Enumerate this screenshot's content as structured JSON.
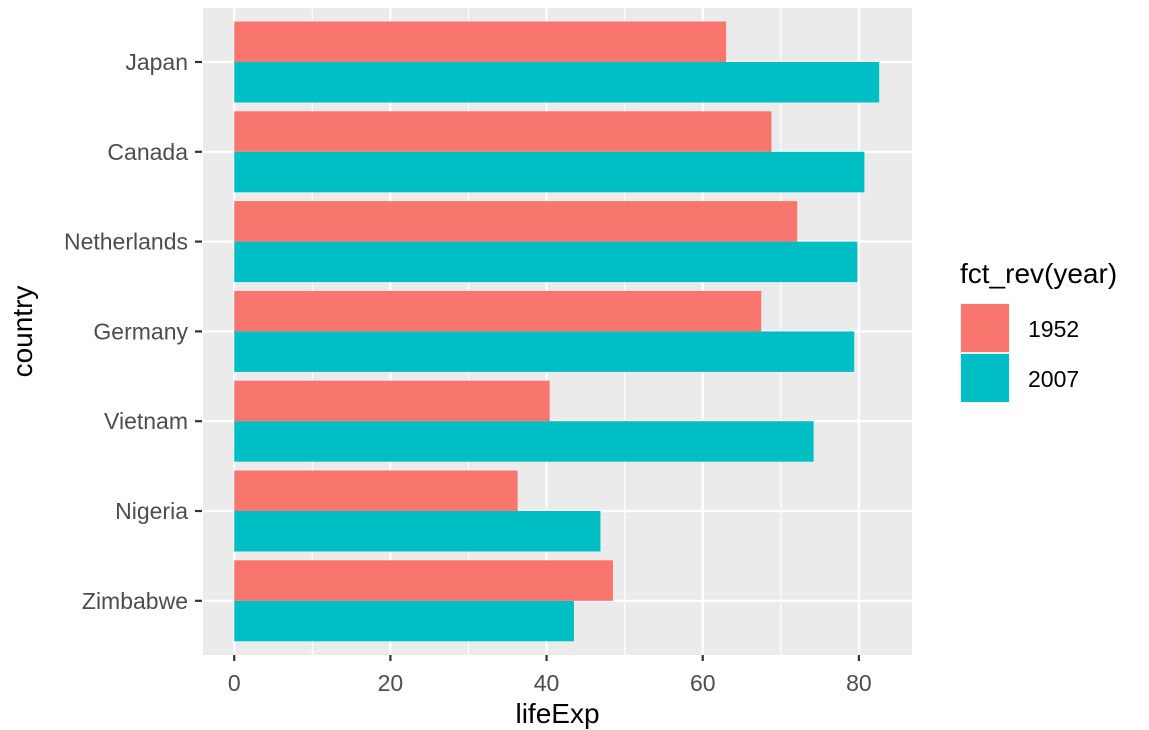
{
  "chart_data": {
    "type": "bar",
    "orientation": "horizontal",
    "categories": [
      "Japan",
      "Canada",
      "Netherlands",
      "Germany",
      "Vietnam",
      "Nigeria",
      "Zimbabwe"
    ],
    "series": [
      {
        "name": "1952",
        "color": "#F8766D",
        "values": [
          63.0,
          68.8,
          72.1,
          67.5,
          40.4,
          36.3,
          48.5
        ]
      },
      {
        "name": "2007",
        "color": "#00BFC4",
        "values": [
          82.6,
          80.7,
          79.8,
          79.4,
          74.2,
          46.9,
          43.5
        ]
      }
    ],
    "xlabel": "lifeExp",
    "ylabel": "country",
    "xlim": [
      -4,
      86.8
    ],
    "xticks": [
      0,
      20,
      40,
      60,
      80
    ],
    "legend_title": "fct_rev(year)",
    "legend_position": "right",
    "grid": true,
    "panel_color": "#EBEBEB",
    "grid_color": "#FFFFFF"
  }
}
